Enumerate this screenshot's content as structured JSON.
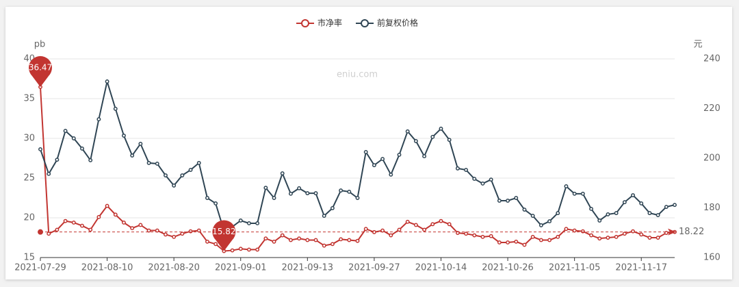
{
  "chart_data": {
    "type": "line",
    "categories": [
      "2021-07-29",
      null,
      null,
      null,
      null,
      null,
      null,
      null,
      "2021-08-10",
      null,
      null,
      null,
      null,
      null,
      null,
      null,
      "2021-08-20",
      null,
      null,
      null,
      null,
      null,
      null,
      null,
      "2021-09-01",
      null,
      null,
      null,
      null,
      null,
      null,
      null,
      "2021-09-13",
      null,
      null,
      null,
      null,
      null,
      null,
      null,
      "2021-09-27",
      null,
      null,
      null,
      null,
      null,
      null,
      null,
      "2021-10-14",
      null,
      null,
      null,
      null,
      null,
      null,
      null,
      "2021-10-26",
      null,
      null,
      null,
      null,
      null,
      null,
      null,
      "2021-11-05",
      null,
      null,
      null,
      null,
      null,
      null,
      null,
      "2021-11-17",
      null,
      null,
      null,
      null
    ],
    "series": [
      {
        "name": "市净率",
        "color": "#c23531",
        "values": [
          36.47,
          18.0,
          18.5,
          19.6,
          19.4,
          19.0,
          18.5,
          20.1,
          21.5,
          20.4,
          19.4,
          18.7,
          19.1,
          18.4,
          18.4,
          17.9,
          17.6,
          18.0,
          18.3,
          18.4,
          17.0,
          16.7,
          15.82,
          15.9,
          16.1,
          16.0,
          16.0,
          17.4,
          17.0,
          17.8,
          17.2,
          17.4,
          17.2,
          17.2,
          16.5,
          16.7,
          17.3,
          17.2,
          17.1,
          18.6,
          18.2,
          18.4,
          17.8,
          18.5,
          19.5,
          19.1,
          18.5,
          19.2,
          19.6,
          19.2,
          18.1,
          18.0,
          17.8,
          17.6,
          17.7,
          16.9,
          16.9,
          17.0,
          16.6,
          17.6,
          17.2,
          17.2,
          17.6,
          18.6,
          18.4,
          18.3,
          17.8,
          17.4,
          17.5,
          17.6,
          18.0,
          18.3,
          17.9,
          17.5,
          17.5,
          18.1,
          18.22
        ]
      },
      {
        "name": "前复权价格",
        "color": "#2f4554",
        "axis": "y2",
        "values": [
          203.6,
          193.7,
          199.4,
          211.0,
          208.0,
          203.9,
          199.2,
          215.7,
          230.9,
          219.9,
          209.1,
          201.1,
          205.8,
          198.1,
          197.8,
          193.1,
          189.0,
          193.1,
          195.3,
          198.1,
          184.0,
          181.8,
          170.8,
          172.4,
          174.9,
          173.8,
          173.8,
          188.1,
          184.0,
          193.9,
          185.7,
          187.9,
          185.9,
          185.9,
          176.8,
          179.9,
          187.0,
          186.5,
          184.0,
          202.5,
          197.2,
          199.7,
          193.4,
          201.4,
          210.8,
          206.9,
          200.8,
          208.6,
          211.9,
          207.4,
          195.9,
          195.3,
          191.7,
          189.8,
          191.4,
          182.9,
          182.9,
          184.0,
          179.3,
          176.8,
          173.0,
          174.6,
          177.9,
          188.7,
          185.7,
          185.7,
          179.6,
          174.9,
          177.4,
          177.9,
          182.3,
          185.1,
          181.8,
          177.9,
          177.1,
          180.4,
          181.2
        ]
      }
    ],
    "ylim": [
      15,
      40
    ],
    "yticks": [
      15,
      20,
      25,
      30,
      35,
      40
    ],
    "y2lim": [
      160,
      240
    ],
    "y2ticks": [
      160,
      180,
      200,
      220,
      240
    ],
    "y_axis_name": "pb",
    "y2_axis_name": "元",
    "grid": true,
    "legend": "top",
    "watermark": "eniu.com",
    "mark_points": [
      36.47,
      15.82
    ],
    "mark_line": 18.22
  }
}
